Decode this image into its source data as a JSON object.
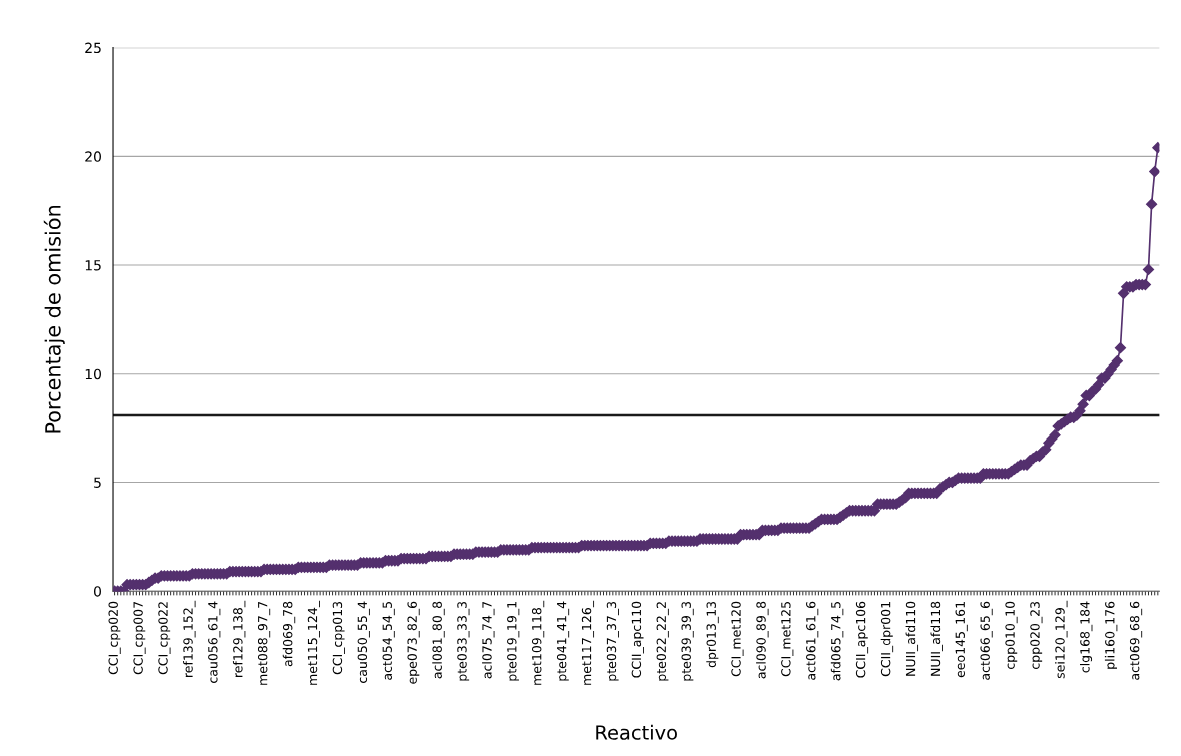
{
  "chart_data": {
    "type": "line",
    "xlabel": "Reactivo",
    "ylabel": "Porcentaje de omisión",
    "categories": [
      "CCI_cpp020",
      null,
      null,
      null,
      null,
      null,
      null,
      null,
      "CCI_cpp007",
      null,
      null,
      null,
      null,
      null,
      null,
      null,
      "CCI_cpp022",
      null,
      null,
      null,
      null,
      null,
      null,
      null,
      "ref139_152_",
      null,
      null,
      null,
      null,
      null,
      null,
      null,
      "cau056_61_4",
      null,
      null,
      null,
      null,
      null,
      null,
      null,
      "ref129_138_",
      null,
      null,
      null,
      null,
      null,
      null,
      null,
      "met088_97_7",
      null,
      null,
      null,
      null,
      null,
      null,
      null,
      "afd069_78",
      null,
      null,
      null,
      null,
      null,
      null,
      null,
      "met115_124_",
      null,
      null,
      null,
      null,
      null,
      null,
      null,
      "CCI_cpp013",
      null,
      null,
      null,
      null,
      null,
      null,
      null,
      "cau050_55_4",
      null,
      null,
      null,
      null,
      null,
      null,
      null,
      "act054_54_5",
      null,
      null,
      null,
      null,
      null,
      null,
      null,
      "epe073_82_6",
      null,
      null,
      null,
      null,
      null,
      null,
      null,
      "acl081_80_8",
      null,
      null,
      null,
      null,
      null,
      null,
      null,
      "pte033_33_3",
      null,
      null,
      null,
      null,
      null,
      null,
      null,
      "acl075_74_7",
      null,
      null,
      null,
      null,
      null,
      null,
      null,
      "pte019_19_1",
      null,
      null,
      null,
      null,
      null,
      null,
      null,
      "met109_118_",
      null,
      null,
      null,
      null,
      null,
      null,
      null,
      "pte041_41_4",
      null,
      null,
      null,
      null,
      null,
      null,
      null,
      "met117_126_",
      null,
      null,
      null,
      null,
      null,
      null,
      null,
      "pte037_37_3",
      null,
      null,
      null,
      null,
      null,
      null,
      null,
      "CCII_apc110",
      null,
      null,
      null,
      null,
      null,
      null,
      null,
      "pte022_22_2",
      null,
      null,
      null,
      null,
      null,
      null,
      null,
      "pte039_39_3",
      null,
      null,
      null,
      null,
      null,
      null,
      null,
      "dpr013_13",
      null,
      null,
      null,
      null,
      null,
      null,
      null,
      "CCI_met120",
      null,
      null,
      null,
      null,
      null,
      null,
      null,
      "acl090_89_8",
      null,
      null,
      null,
      null,
      null,
      null,
      null,
      "CCI_met125",
      null,
      null,
      null,
      null,
      null,
      null,
      null,
      "act061_61_6",
      null,
      null,
      null,
      null,
      null,
      null,
      null,
      "afd065_74_5",
      null,
      null,
      null,
      null,
      null,
      null,
      null,
      "CCII_apc106",
      null,
      null,
      null,
      null,
      null,
      null,
      null,
      "CCII_dpr001",
      null,
      null,
      null,
      null,
      null,
      null,
      null,
      "NUII_afd110",
      null,
      null,
      null,
      null,
      null,
      null,
      null,
      "NUII_afd118",
      null,
      null,
      null,
      null,
      null,
      null,
      null,
      "eeo145_161",
      null,
      null,
      null,
      null,
      null,
      null,
      null,
      "act066_65_6",
      null,
      null,
      null,
      null,
      null,
      null,
      null,
      "cpp010_10",
      null,
      null,
      null,
      null,
      null,
      null,
      null,
      "cpp020_23",
      null,
      null,
      null,
      null,
      null,
      null,
      null,
      "sei120_129_",
      null,
      null,
      null,
      null,
      null,
      null,
      null,
      "clg168_184",
      null,
      null,
      null,
      null,
      null,
      null,
      null,
      "pli160_176",
      null,
      null,
      null,
      null,
      null,
      null,
      null,
      "act069_68_6",
      null,
      null,
      null,
      null,
      null,
      null,
      null
    ],
    "series": [
      {
        "color": "#54306e",
        "values": [
          0,
          0,
          0,
          0,
          0.3,
          0.3,
          0.3,
          0.3,
          0.3,
          0.3,
          0.3,
          0.4,
          0.5,
          0.6,
          0.6,
          0.7,
          0.7,
          0.7,
          0.7,
          0.7,
          0.7,
          0.7,
          0.7,
          0.7,
          0.7,
          0.8,
          0.8,
          0.8,
          0.8,
          0.8,
          0.8,
          0.8,
          0.8,
          0.8,
          0.8,
          0.8,
          0.8,
          0.9,
          0.9,
          0.9,
          0.9,
          0.9,
          0.9,
          0.9,
          0.9,
          0.9,
          0.9,
          0.9,
          1.0,
          1.0,
          1.0,
          1.0,
          1.0,
          1.0,
          1.0,
          1.0,
          1.0,
          1.0,
          1.0,
          1.1,
          1.1,
          1.1,
          1.1,
          1.1,
          1.1,
          1.1,
          1.1,
          1.1,
          1.1,
          1.2,
          1.2,
          1.2,
          1.2,
          1.2,
          1.2,
          1.2,
          1.2,
          1.2,
          1.2,
          1.3,
          1.3,
          1.3,
          1.3,
          1.3,
          1.3,
          1.3,
          1.3,
          1.4,
          1.4,
          1.4,
          1.4,
          1.4,
          1.5,
          1.5,
          1.5,
          1.5,
          1.5,
          1.5,
          1.5,
          1.5,
          1.5,
          1.6,
          1.6,
          1.6,
          1.6,
          1.6,
          1.6,
          1.6,
          1.6,
          1.7,
          1.7,
          1.7,
          1.7,
          1.7,
          1.7,
          1.7,
          1.8,
          1.8,
          1.8,
          1.8,
          1.8,
          1.8,
          1.8,
          1.8,
          1.9,
          1.9,
          1.9,
          1.9,
          1.9,
          1.9,
          1.9,
          1.9,
          1.9,
          1.9,
          2.0,
          2.0,
          2.0,
          2.0,
          2.0,
          2.0,
          2.0,
          2.0,
          2.0,
          2.0,
          2.0,
          2.0,
          2.0,
          2.0,
          2.0,
          2.0,
          2.1,
          2.1,
          2.1,
          2.1,
          2.1,
          2.1,
          2.1,
          2.1,
          2.1,
          2.1,
          2.1,
          2.1,
          2.1,
          2.1,
          2.1,
          2.1,
          2.1,
          2.1,
          2.1,
          2.1,
          2.1,
          2.1,
          2.2,
          2.2,
          2.2,
          2.2,
          2.2,
          2.2,
          2.3,
          2.3,
          2.3,
          2.3,
          2.3,
          2.3,
          2.3,
          2.3,
          2.3,
          2.3,
          2.4,
          2.4,
          2.4,
          2.4,
          2.4,
          2.4,
          2.4,
          2.4,
          2.4,
          2.4,
          2.4,
          2.4,
          2.4,
          2.6,
          2.6,
          2.6,
          2.6,
          2.6,
          2.6,
          2.6,
          2.8,
          2.8,
          2.8,
          2.8,
          2.8,
          2.8,
          2.9,
          2.9,
          2.9,
          2.9,
          2.9,
          2.9,
          2.9,
          2.9,
          2.9,
          2.9,
          3.0,
          3.1,
          3.2,
          3.3,
          3.3,
          3.3,
          3.3,
          3.3,
          3.3,
          3.4,
          3.5,
          3.6,
          3.7,
          3.7,
          3.7,
          3.7,
          3.7,
          3.7,
          3.7,
          3.7,
          3.7,
          4.0,
          4.0,
          4.0,
          4.0,
          4.0,
          4.0,
          4.0,
          4.1,
          4.2,
          4.3,
          4.5,
          4.5,
          4.5,
          4.5,
          4.5,
          4.5,
          4.5,
          4.5,
          4.5,
          4.5,
          4.7,
          4.8,
          4.9,
          5.0,
          5.0,
          5.1,
          5.2,
          5.2,
          5.2,
          5.2,
          5.2,
          5.2,
          5.2,
          5.2,
          5.4,
          5.4,
          5.4,
          5.4,
          5.4,
          5.4,
          5.4,
          5.4,
          5.4,
          5.5,
          5.6,
          5.7,
          5.8,
          5.8,
          5.8,
          6.0,
          6.1,
          6.2,
          6.2,
          6.4,
          6.5,
          6.8,
          7.0,
          7.2,
          7.6,
          7.7,
          7.8,
          7.9,
          8.0,
          8.0,
          8.1,
          8.3,
          8.6,
          9.0,
          9.0,
          9.2,
          9.3,
          9.5,
          9.8,
          9.8,
          10.0,
          10.2,
          10.4,
          10.6,
          11.2,
          13.7,
          14.0,
          14.0,
          14.0,
          14.1,
          14.1,
          14.1,
          14.1,
          14.8,
          17.8,
          19.3,
          20.4
        ]
      }
    ],
    "ylim": [
      0,
      25
    ],
    "yticks": [
      0,
      5,
      10,
      15,
      20,
      25
    ],
    "grid": "y",
    "legend": false,
    "marker": "diamond",
    "line_style": "solid",
    "ref_lines": [
      {
        "axis": "y",
        "value": 8.1,
        "color": "#1a1a1a",
        "line_style": "solid"
      }
    ]
  }
}
